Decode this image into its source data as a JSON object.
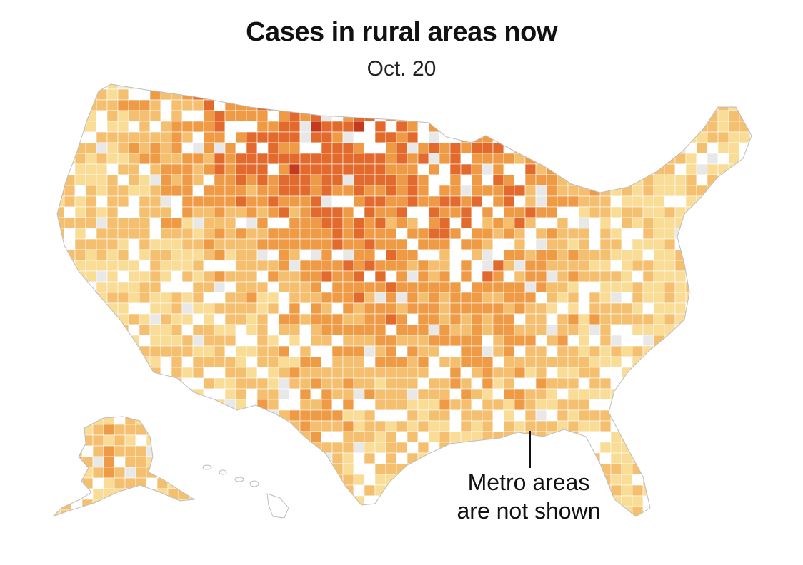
{
  "header": {
    "title": "Cases in rural areas now",
    "date": "Oct. 20"
  },
  "annotation": {
    "line1": "Metro areas",
    "line2": "are not shown"
  },
  "legend_colors": {
    "no_data": "#e8e8e8",
    "level1": "#f9dc96",
    "level2": "#f4c070",
    "level3": "#ef9a45",
    "level4": "#e26a2c",
    "level5": "#c43a1e",
    "metro": "#ffffff",
    "borders": "#ffffff",
    "outline": "#bdbdbd"
  }
}
